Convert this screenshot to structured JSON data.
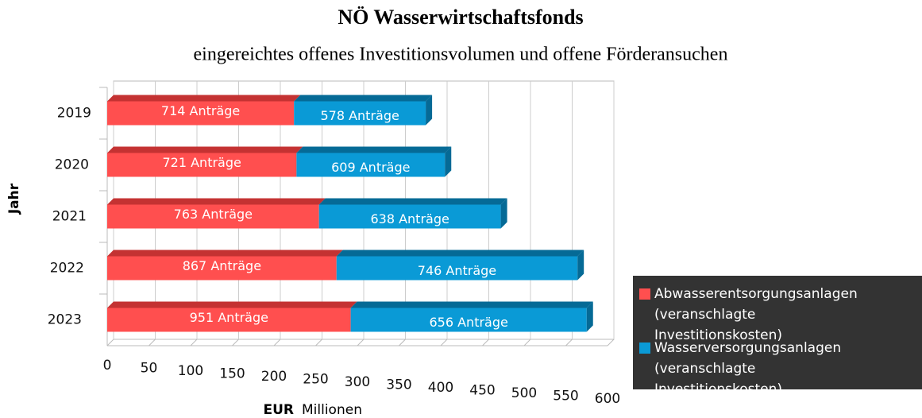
{
  "chart_data": {
    "type": "bar3d_stacked_horizontal",
    "title": "NÖ Wasserwirtschaftsfonds",
    "subtitle": "eingereichtes offenes Investitionsvolumen und offene Förderansuchen",
    "y_axis_label": "Jahr",
    "x_axis_label": "EUR",
    "x_axis_unit": "Millionen",
    "categories": [
      "2019",
      "2020",
      "2021",
      "2022",
      "2023"
    ],
    "series": [
      {
        "name": "Abwasserentsorgungsanlagen (veranschlagte Investitionskosten)",
        "color": "#ff4f4f",
        "edge": "#c43232",
        "values": [
          224,
          227,
          254,
          275,
          292
        ],
        "bar_labels": [
          "714 Anträge",
          "721 Anträge",
          "763 Anträge",
          "867 Anträge",
          "951 Anträge"
        ]
      },
      {
        "name": "Wasserversorgungsanlagen (veranschlagte Investitionskosten)",
        "color": "#0a9ad6",
        "edge": "#056a96",
        "values": [
          158,
          178,
          218,
          289,
          283
        ],
        "bar_labels": [
          "578 Anträge",
          "609 Anträge",
          "638 Anträge",
          "746 Anträge",
          "656 Anträge"
        ]
      }
    ],
    "xlim": [
      0,
      600
    ],
    "xticks": [
      0,
      50,
      100,
      150,
      200,
      250,
      300,
      350,
      400,
      450,
      500,
      550,
      600
    ],
    "grid": true,
    "legend": "right"
  }
}
